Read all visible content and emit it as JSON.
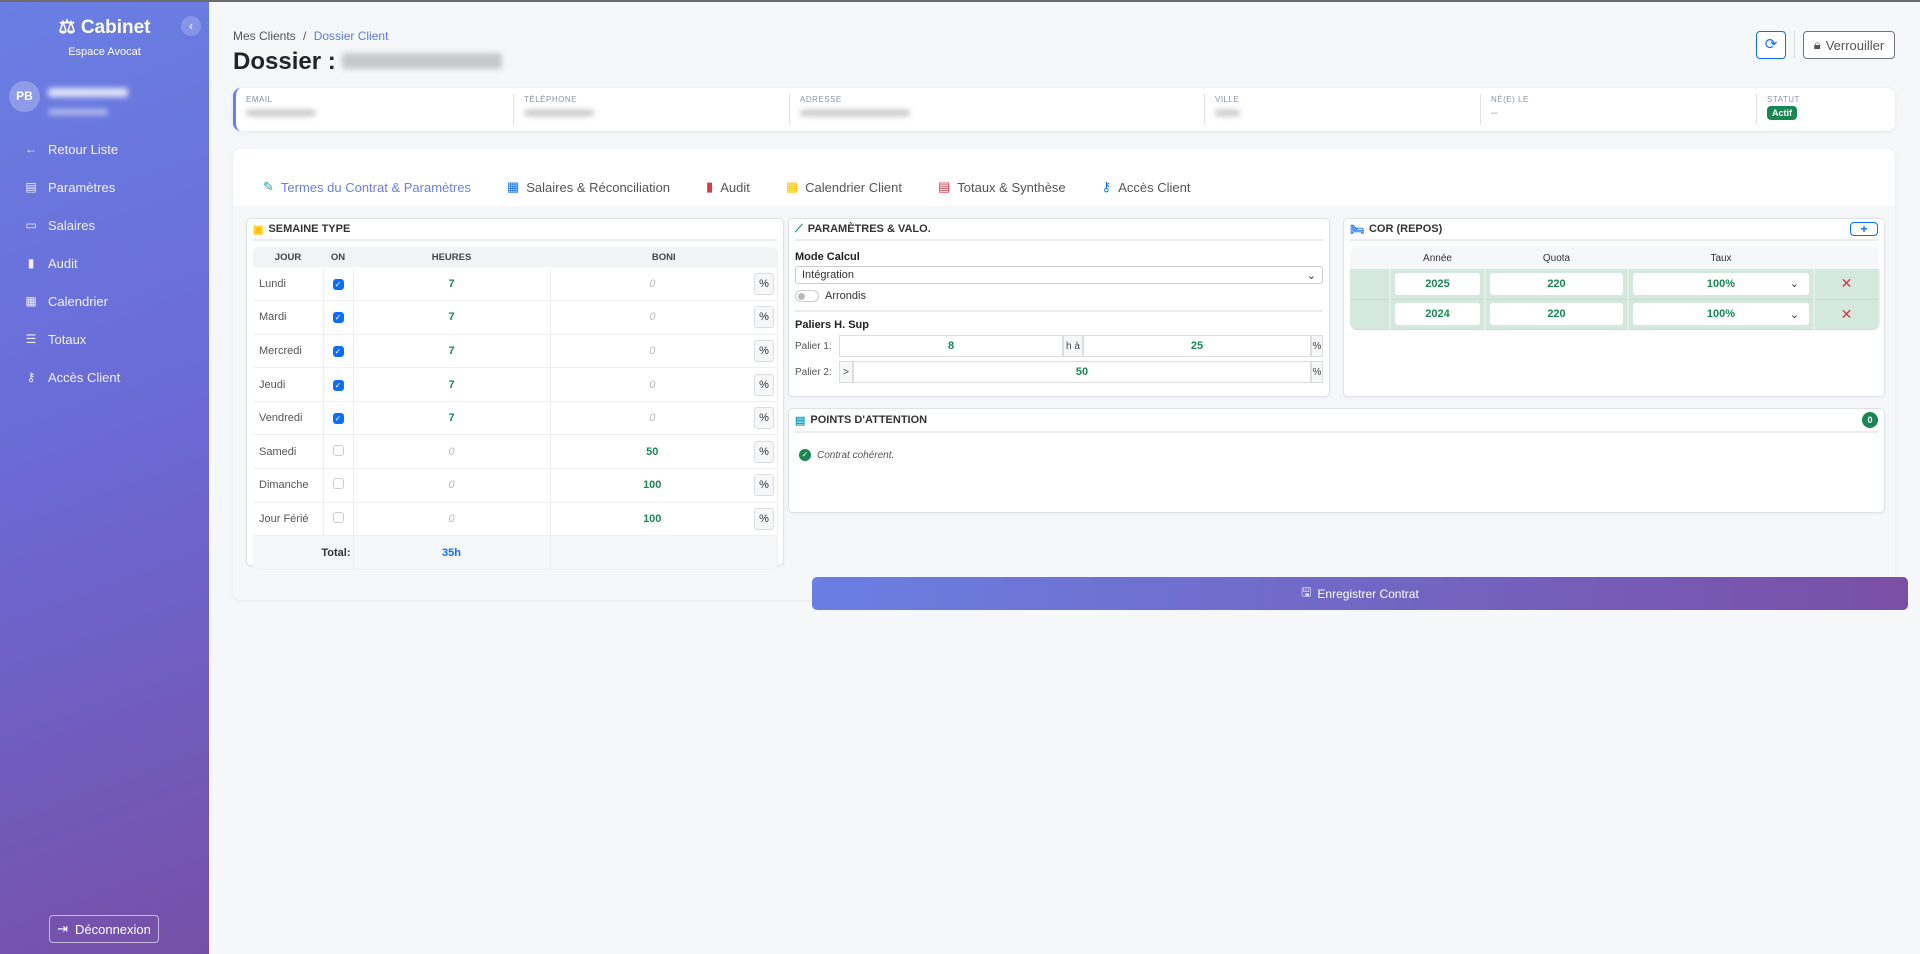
{
  "sidebar": {
    "brand": "Cabinet",
    "subtitle": "Espace Avocat",
    "avatar_initials": "PB",
    "items": [
      {
        "label": "Retour Liste",
        "icon": "arrow-left-icon"
      },
      {
        "label": "Paramètres",
        "icon": "file-contract-icon"
      },
      {
        "label": "Salaires",
        "icon": "money-bill-icon"
      },
      {
        "label": "Audit",
        "icon": "clipboard-check-icon"
      },
      {
        "label": "Calendrier",
        "icon": "calendar-icon"
      },
      {
        "label": "Totaux",
        "icon": "chart-bar-icon"
      },
      {
        "label": "Accès Client",
        "icon": "key-icon"
      }
    ],
    "logout": "Déconnexion"
  },
  "header": {
    "breadcrumb": [
      "Mes Clients",
      "/",
      "Dossier Client"
    ],
    "title": "Dossier :",
    "lock_label": "Verrouiller"
  },
  "info": {
    "labels": [
      "Email",
      "Téléphone",
      "Adresse",
      "Ville",
      "Né(e) le",
      "Statut"
    ],
    "birth": "--",
    "status": "Actif"
  },
  "tabs": [
    "Termes du Contrat & Paramètres",
    "Salaires & Réconciliation",
    "Audit",
    "Calendrier Client",
    "Totaux & Synthèse",
    "Accès Client"
  ],
  "semaine": {
    "title": "SEMAINE TYPE",
    "headers": [
      "JOUR",
      "ON",
      "HEURES",
      "BONI"
    ],
    "rows": [
      {
        "day": "Lundi",
        "on": true,
        "hours": "7",
        "boni": "0"
      },
      {
        "day": "Mardi",
        "on": true,
        "hours": "7",
        "boni": "0"
      },
      {
        "day": "Mercredi",
        "on": true,
        "hours": "7",
        "boni": "0"
      },
      {
        "day": "Jeudi",
        "on": true,
        "hours": "7",
        "boni": "0"
      },
      {
        "day": "Vendredi",
        "on": true,
        "hours": "7",
        "boni": "0"
      },
      {
        "day": "Samedi",
        "on": false,
        "hours": "0",
        "boni": "50"
      },
      {
        "day": "Dimanche",
        "on": false,
        "hours": "0",
        "boni": "100"
      },
      {
        "day": "Jour Férié",
        "on": false,
        "hours": "0",
        "boni": "100"
      }
    ],
    "pct": "%",
    "total_label": "Total:",
    "total": "35h"
  },
  "params": {
    "title": "PARAMÈTRES & VALO.",
    "mode_label": "Mode Calcul",
    "mode_value": "Intégration",
    "arrondis": "Arrondis",
    "arrondis_on": false,
    "paliers_label": "Paliers H. Sup",
    "palier1_label": "Palier 1:",
    "palier1_hours": "8",
    "palier1_sep": "h à",
    "palier1_rate": "25",
    "palier2_label": "Palier 2:",
    "palier2_prefix": ">",
    "palier2_rate": "50",
    "pct": "%"
  },
  "cor": {
    "title": "COR (REPOS)",
    "add": "+",
    "headers": [
      "Année",
      "Quota",
      "Taux"
    ],
    "rows": [
      {
        "year": "2025",
        "quota": "220",
        "rate": "100%"
      },
      {
        "year": "2024",
        "quota": "220",
        "rate": "100%"
      }
    ]
  },
  "attention": {
    "title": "POINTS D'ATTENTION",
    "count": "0",
    "message": "Contrat cohérent."
  },
  "save_label": "Enregistrer Contrat",
  "colors": {
    "accent": "#6a7fe3",
    "success": "#198754",
    "primary": "#0d6efd",
    "danger": "#dc3545"
  }
}
